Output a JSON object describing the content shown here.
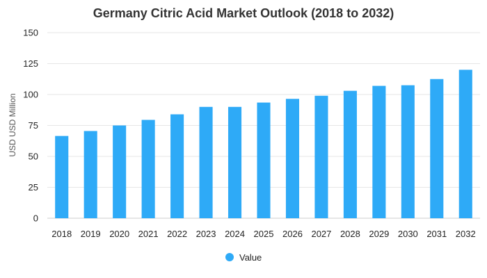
{
  "chart_data": {
    "type": "bar",
    "title": "Germany Citric Acid Market Outlook (2018 to 2032)",
    "xlabel": "",
    "ylabel": "USD USD Million",
    "categories": [
      "2018",
      "2019",
      "2020",
      "2021",
      "2022",
      "2023",
      "2024",
      "2025",
      "2026",
      "2027",
      "2028",
      "2029",
      "2030",
      "2031",
      "2032"
    ],
    "series": [
      {
        "name": "Value",
        "color": "#2eaaf7",
        "values": [
          66.5,
          70.5,
          75,
          79.5,
          84,
          90,
          90,
          93.5,
          96.5,
          99,
          103,
          107,
          107.5,
          112.5,
          120
        ]
      }
    ],
    "ylim": [
      0,
      150
    ],
    "yticks": [
      0,
      25,
      50,
      75,
      100,
      125,
      150
    ],
    "grid": true,
    "legend": "bottom-center"
  }
}
